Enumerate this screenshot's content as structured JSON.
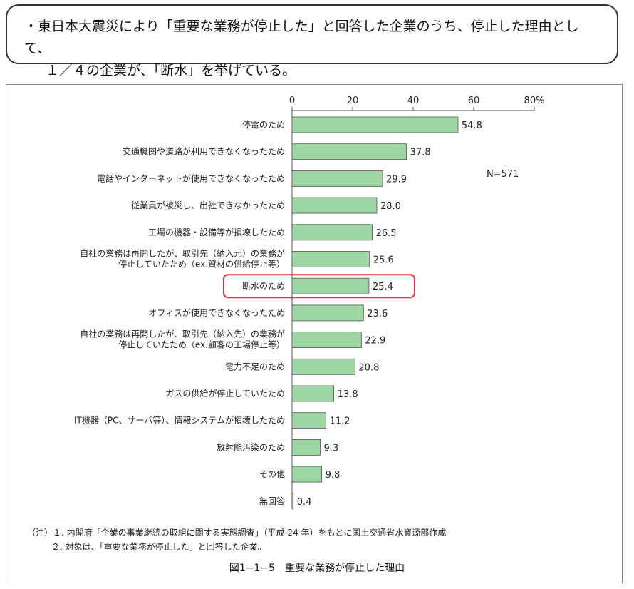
{
  "callout": {
    "line1": "・東日本大震災により「重要な業務が停止した」と回答した企業のうち、停止した理由として、",
    "line2": "１／４の企業が、「断水」を挙げている。"
  },
  "chart_data": {
    "type": "bar",
    "orientation": "horizontal",
    "xlim": [
      0,
      80
    ],
    "ticks": [
      "0",
      "20",
      "40",
      "60",
      "80%"
    ],
    "tick_values": [
      0,
      20,
      40,
      60,
      80
    ],
    "sample_label": "N=571",
    "bar_color": "#9dd6a3",
    "highlight_color": "#e0343e",
    "highlight_index": 6,
    "categories": [
      [
        "停電のため"
      ],
      [
        "交通機関や道路が利用できなくなったため"
      ],
      [
        "電話やインターネットが使用できなくなったため"
      ],
      [
        "従業員が被災し、出社できなかったため"
      ],
      [
        "工場の機器・設備等が損壊したため"
      ],
      [
        "自社の業務は再開したが、取引先（納入元）の業務が",
        "停止していたため（ex.資材の供給停止等）"
      ],
      [
        "断水のため"
      ],
      [
        "オフィスが使用できなくなったため"
      ],
      [
        "自社の業務は再開したが、取引先（納入先）の業務が",
        "停止していたため（ex.顧客の工場停止等）"
      ],
      [
        "電力不足のため"
      ],
      [
        "ガスの供給が停止していたため"
      ],
      [
        "IT機器（PC、サーバ等）、情報システムが損壊したため"
      ],
      [
        "放射能汚染のため"
      ],
      [
        "その他"
      ],
      [
        "無回答"
      ]
    ],
    "values": [
      54.8,
      37.8,
      29.9,
      28.0,
      26.5,
      25.6,
      25.4,
      23.6,
      22.9,
      20.8,
      13.8,
      11.2,
      9.3,
      9.8,
      0.4
    ],
    "value_labels": [
      "54.8",
      "37.8",
      "29.9",
      "28.0",
      "26.5",
      "25.6",
      "25.4",
      "23.6",
      "22.9",
      "20.8",
      "13.8",
      "11.2",
      "9.3",
      "9.8",
      "0.4"
    ]
  },
  "notes": {
    "note1": "（注）１. 内閣府「企業の事業継続の取組に関する実態調査」（平成 24 年）をもとに国土交通省水資源部作成",
    "note2": "２. 対象は、「重要な業務が停止した」と回答した企業。"
  },
  "caption": "図1−1−5　重要な業務が停止した理由"
}
